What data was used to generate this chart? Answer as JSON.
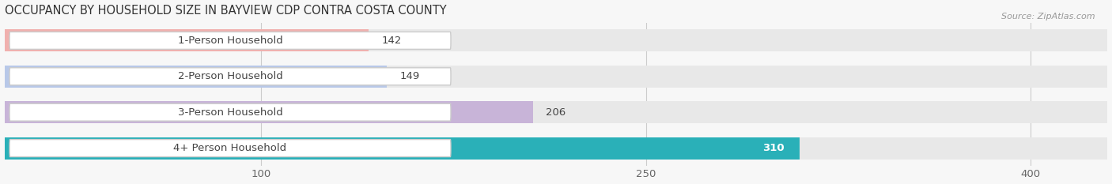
{
  "title": "OCCUPANCY BY HOUSEHOLD SIZE IN BAYVIEW CDP CONTRA COSTA COUNTY",
  "source": "Source: ZipAtlas.com",
  "categories": [
    "1-Person Household",
    "2-Person Household",
    "3-Person Household",
    "4+ Person Household"
  ],
  "values": [
    142,
    149,
    206,
    310
  ],
  "bar_colors": [
    "#f0b0ae",
    "#b8c8e8",
    "#c8b4d8",
    "#2ab0b8"
  ],
  "label_colors": [
    "#444444",
    "#444444",
    "#444444",
    "#ffffff"
  ],
  "bg_color": "#f7f7f7",
  "bar_bg_color": "#e8e8e8",
  "xlim": [
    0,
    430
  ],
  "xticks": [
    100,
    250,
    400
  ],
  "bar_height": 0.62,
  "figsize": [
    14.06,
    2.33
  ],
  "dpi": 100,
  "title_fontsize": 10.5,
  "tick_fontsize": 9.5,
  "bar_label_fontsize": 9.5,
  "category_fontsize": 9.5,
  "value_inside_bar": [
    false,
    false,
    false,
    true
  ]
}
